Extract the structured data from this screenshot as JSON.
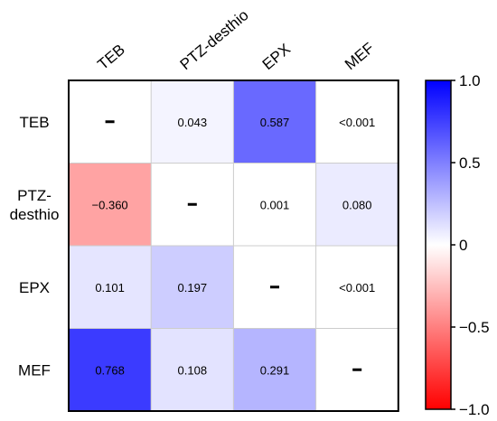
{
  "chart_data": {
    "type": "heatmap",
    "title": "",
    "columns": [
      "TEB",
      "PTZ-desthio",
      "EPX",
      "MEF"
    ],
    "rows": [
      [
        "TEB"
      ],
      [
        "PTZ-",
        "desthio"
      ],
      [
        "EPX"
      ],
      [
        "MEF"
      ]
    ],
    "cells": [
      [
        {
          "label": "–",
          "value": null,
          "diagonal": true
        },
        {
          "label": "0.043",
          "value": 0.043
        },
        {
          "label": "0.587",
          "value": 0.587
        },
        {
          "label": "<0.001",
          "value": 0.0005
        }
      ],
      [
        {
          "label": "−0.360",
          "value": -0.36
        },
        {
          "label": "–",
          "value": null,
          "diagonal": true
        },
        {
          "label": "0.001",
          "value": 0.001
        },
        {
          "label": "0.080",
          "value": 0.08
        }
      ],
      [
        {
          "label": "0.101",
          "value": 0.101
        },
        {
          "label": "0.197",
          "value": 0.197
        },
        {
          "label": "–",
          "value": null,
          "diagonal": true
        },
        {
          "label": "<0.001",
          "value": 0.0005
        }
      ],
      [
        {
          "label": "0.768",
          "value": 0.768
        },
        {
          "label": "0.108",
          "value": 0.108
        },
        {
          "label": "0.291",
          "value": 0.291
        },
        {
          "label": "–",
          "value": null,
          "diagonal": true
        }
      ]
    ],
    "colorbar": {
      "range": [
        -1.0,
        1.0
      ],
      "ticks": [
        {
          "value": 1.0,
          "label": "1.0"
        },
        {
          "value": 0.5,
          "label": "0.5"
        },
        {
          "value": 0.0,
          "label": "0"
        },
        {
          "value": -0.5,
          "label": "−0.5"
        },
        {
          "value": -1.0,
          "label": "−1.0"
        }
      ],
      "colors": {
        "positive": "#0000ff",
        "zero": "#ffffff",
        "negative": "#ff0000"
      }
    }
  }
}
